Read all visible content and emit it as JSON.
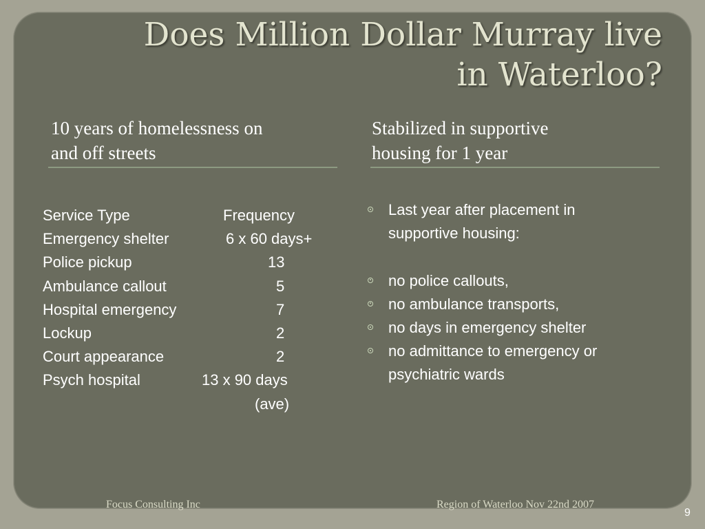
{
  "title_line1": "Does Million Dollar Murray live",
  "title_line2": "in Waterloo?",
  "left_header_line1": "10 years of homelessness on",
  "left_header_line2": "and off streets",
  "right_header_line1": "Stabilized in supportive",
  "right_header_line2": "housing for 1 year",
  "table": {
    "headers": [
      "Service Type",
      "Frequency"
    ],
    "rows": [
      [
        "Emergency shelter",
        "6 x 60 days+"
      ],
      [
        "Police pickup",
        "13"
      ],
      [
        "Ambulance callout",
        "5"
      ],
      [
        "Hospital emergency",
        "7"
      ],
      [
        "Lockup",
        "2"
      ],
      [
        "Court appearance",
        "2"
      ],
      [
        "Psych hospital",
        "13 x 90 days"
      ]
    ],
    "note": "(ave)"
  },
  "bullets": [
    "Last year after placement in",
    "supportive housing:",
    "",
    "no police callouts,",
    "no ambulance transports,",
    "no days in emergency shelter",
    "no admittance to emergency or",
    "psychiatric wards"
  ],
  "footer_left": "Focus Consulting Inc",
  "footer_right": "Region of Waterloo Nov 22nd 2007",
  "page_number": "9",
  "colors": {
    "background": "#a4a394",
    "panel": "#6a6c5e",
    "title": "#e3e4cf",
    "rule": "#8d9a82",
    "bullet": "#c9d7b9"
  }
}
